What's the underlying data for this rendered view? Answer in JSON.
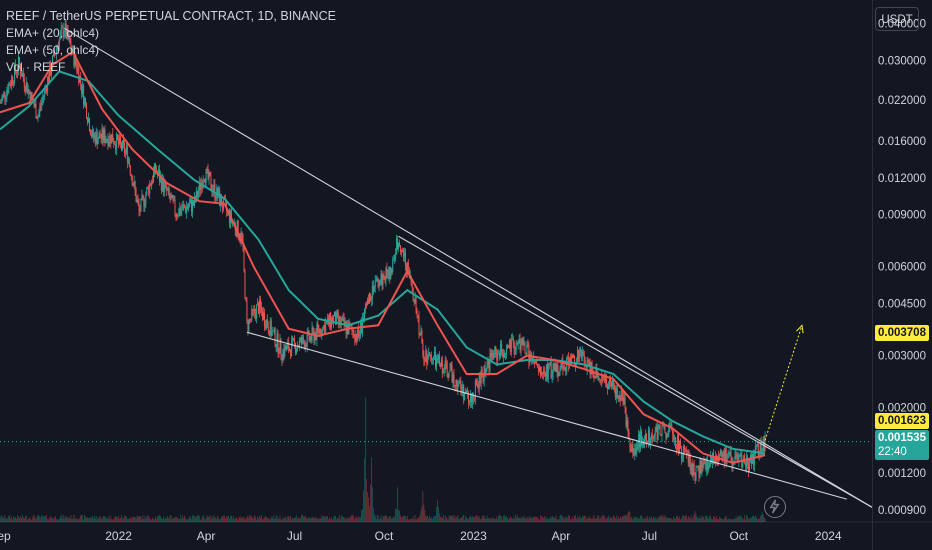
{
  "chart_data": {
    "type": "candlestick",
    "title": "REEF / TetherUS PERPETUAL CONTRACT, 1D, BINANCE",
    "indicators": [
      "EMA+ (20, ohlc4)",
      "EMA+ (50, ohlc4)",
      "Vol · REEF"
    ],
    "currency": "USDT",
    "y_scale": "log",
    "ylim": [
      0.00082,
      0.048
    ],
    "y_ticks": [
      0.04,
      0.03,
      0.022,
      0.016,
      0.012,
      0.009,
      0.006,
      0.0045,
      0.003,
      0.002,
      0.0012,
      0.0009
    ],
    "y_tick_labels": [
      "0.040000",
      "0.030000",
      "0.022000",
      "0.016000",
      "0.012000",
      "0.009000",
      "0.006000",
      "0.004500",
      "0.003000",
      "0.002000",
      "0.001200",
      "0.000900"
    ],
    "x_range": [
      "2021-09-01",
      "2024-02-15"
    ],
    "x_ticks": [
      {
        "label": "Sep",
        "date": "2021-09-01"
      },
      {
        "label": "2022",
        "date": "2022-01-01"
      },
      {
        "label": "Apr",
        "date": "2022-04-01"
      },
      {
        "label": "Jul",
        "date": "2022-07-01"
      },
      {
        "label": "Oct",
        "date": "2022-10-01"
      },
      {
        "label": "2023",
        "date": "2023-01-01"
      },
      {
        "label": "Apr",
        "date": "2023-04-01"
      },
      {
        "label": "Jul",
        "date": "2023-07-01"
      },
      {
        "label": "Oct",
        "date": "2023-10-01"
      },
      {
        "label": "2024",
        "date": "2024-01-01"
      }
    ],
    "price_path": [
      {
        "date": "2021-09-01",
        "price": 0.0215
      },
      {
        "date": "2021-09-20",
        "price": 0.029
      },
      {
        "date": "2021-10-10",
        "price": 0.0195
      },
      {
        "date": "2021-10-30",
        "price": 0.034
      },
      {
        "date": "2021-11-06",
        "price": 0.0385
      },
      {
        "date": "2021-11-20",
        "price": 0.028
      },
      {
        "date": "2021-12-05",
        "price": 0.0165
      },
      {
        "date": "2021-12-25",
        "price": 0.0165
      },
      {
        "date": "2022-01-10",
        "price": 0.0145
      },
      {
        "date": "2022-01-22",
        "price": 0.0092
      },
      {
        "date": "2022-02-08",
        "price": 0.0128
      },
      {
        "date": "2022-03-01",
        "price": 0.0092
      },
      {
        "date": "2022-03-20",
        "price": 0.0098
      },
      {
        "date": "2022-03-30",
        "price": 0.0125
      },
      {
        "date": "2022-04-20",
        "price": 0.0095
      },
      {
        "date": "2022-05-08",
        "price": 0.0075
      },
      {
        "date": "2022-05-13",
        "price": 0.0038
      },
      {
        "date": "2022-05-25",
        "price": 0.0044
      },
      {
        "date": "2022-06-18",
        "price": 0.0031
      },
      {
        "date": "2022-07-15",
        "price": 0.0034
      },
      {
        "date": "2022-08-10",
        "price": 0.004
      },
      {
        "date": "2022-09-05",
        "price": 0.0035
      },
      {
        "date": "2022-09-20",
        "price": 0.0052
      },
      {
        "date": "2022-10-08",
        "price": 0.0058
      },
      {
        "date": "2022-10-16",
        "price": 0.0076
      },
      {
        "date": "2022-11-01",
        "price": 0.0048
      },
      {
        "date": "2022-11-10",
        "price": 0.0031
      },
      {
        "date": "2022-12-10",
        "price": 0.0026
      },
      {
        "date": "2022-12-28",
        "price": 0.0021
      },
      {
        "date": "2023-01-20",
        "price": 0.003
      },
      {
        "date": "2023-02-20",
        "price": 0.0033
      },
      {
        "date": "2023-03-10",
        "price": 0.0026
      },
      {
        "date": "2023-03-25",
        "price": 0.0027
      },
      {
        "date": "2023-04-20",
        "price": 0.003
      },
      {
        "date": "2023-05-15",
        "price": 0.0025
      },
      {
        "date": "2023-06-05",
        "price": 0.0021
      },
      {
        "date": "2023-06-11",
        "price": 0.0014
      },
      {
        "date": "2023-06-25",
        "price": 0.0016
      },
      {
        "date": "2023-07-20",
        "price": 0.0017
      },
      {
        "date": "2023-08-17",
        "price": 0.0012
      },
      {
        "date": "2023-09-10",
        "price": 0.0014
      },
      {
        "date": "2023-10-10",
        "price": 0.00128
      },
      {
        "date": "2023-10-28",
        "price": 0.00153
      }
    ],
    "ema20_path": [
      {
        "date": "2021-09-01",
        "price": 0.02
      },
      {
        "date": "2021-10-01",
        "price": 0.0215
      },
      {
        "date": "2021-10-25",
        "price": 0.029
      },
      {
        "date": "2021-11-15",
        "price": 0.032
      },
      {
        "date": "2021-12-15",
        "price": 0.0205
      },
      {
        "date": "2022-01-15",
        "price": 0.015
      },
      {
        "date": "2022-02-20",
        "price": 0.0115
      },
      {
        "date": "2022-03-25",
        "price": 0.01
      },
      {
        "date": "2022-04-20",
        "price": 0.0098
      },
      {
        "date": "2022-05-20",
        "price": 0.006
      },
      {
        "date": "2022-06-25",
        "price": 0.0037
      },
      {
        "date": "2022-07-25",
        "price": 0.0035
      },
      {
        "date": "2022-08-25",
        "price": 0.0037
      },
      {
        "date": "2022-09-25",
        "price": 0.0038
      },
      {
        "date": "2022-10-25",
        "price": 0.0058
      },
      {
        "date": "2022-11-25",
        "price": 0.0038
      },
      {
        "date": "2022-12-25",
        "price": 0.0026
      },
      {
        "date": "2023-01-25",
        "price": 0.0026
      },
      {
        "date": "2023-02-25",
        "price": 0.003
      },
      {
        "date": "2023-03-25",
        "price": 0.0029
      },
      {
        "date": "2023-04-25",
        "price": 0.0027
      },
      {
        "date": "2023-05-25",
        "price": 0.0025
      },
      {
        "date": "2023-06-25",
        "price": 0.0019
      },
      {
        "date": "2023-07-25",
        "price": 0.0017
      },
      {
        "date": "2023-08-25",
        "price": 0.0014
      },
      {
        "date": "2023-09-25",
        "price": 0.0013
      },
      {
        "date": "2023-10-28",
        "price": 0.00138
      }
    ],
    "ema50_path": [
      {
        "date": "2021-09-01",
        "price": 0.0175
      },
      {
        "date": "2021-10-01",
        "price": 0.021
      },
      {
        "date": "2021-11-01",
        "price": 0.0275
      },
      {
        "date": "2021-12-01",
        "price": 0.0255
      },
      {
        "date": "2022-01-01",
        "price": 0.0195
      },
      {
        "date": "2022-02-10",
        "price": 0.015
      },
      {
        "date": "2022-03-20",
        "price": 0.0118
      },
      {
        "date": "2022-04-20",
        "price": 0.0102
      },
      {
        "date": "2022-05-25",
        "price": 0.0074
      },
      {
        "date": "2022-06-25",
        "price": 0.005
      },
      {
        "date": "2022-07-25",
        "price": 0.004
      },
      {
        "date": "2022-08-25",
        "price": 0.0038
      },
      {
        "date": "2022-09-25",
        "price": 0.0041
      },
      {
        "date": "2022-10-25",
        "price": 0.005
      },
      {
        "date": "2022-11-25",
        "price": 0.0043
      },
      {
        "date": "2022-12-25",
        "price": 0.0032
      },
      {
        "date": "2023-01-25",
        "price": 0.0028
      },
      {
        "date": "2023-02-25",
        "price": 0.0029
      },
      {
        "date": "2023-03-25",
        "price": 0.0029
      },
      {
        "date": "2023-04-25",
        "price": 0.0028
      },
      {
        "date": "2023-05-25",
        "price": 0.0026
      },
      {
        "date": "2023-06-25",
        "price": 0.0021
      },
      {
        "date": "2023-07-25",
        "price": 0.0018
      },
      {
        "date": "2023-08-25",
        "price": 0.0016
      },
      {
        "date": "2023-09-25",
        "price": 0.00145
      },
      {
        "date": "2023-10-28",
        "price": 0.0014
      }
    ],
    "trendlines": [
      {
        "from": {
          "date": "2021-11-06",
          "price": 0.0385
        },
        "to": {
          "date": "2024-02-15",
          "price": 0.00092
        }
      },
      {
        "from": {
          "date": "2022-10-16",
          "price": 0.0076
        },
        "to": {
          "date": "2024-02-15",
          "price": 0.00092
        }
      },
      {
        "from": {
          "date": "2022-05-13",
          "price": 0.0036
        },
        "to": {
          "date": "2024-01-20",
          "price": 0.00098
        }
      }
    ],
    "projection": {
      "from": {
        "date": "2023-10-28",
        "price": 0.00155
      },
      "to": {
        "date": "2023-12-05",
        "price": 0.0038
      }
    },
    "volume_spikes": [
      {
        "date": "2022-09-12",
        "rel": 0.55
      },
      {
        "date": "2022-09-18",
        "rel": 0.28
      },
      {
        "date": "2022-10-15",
        "rel": 0.17
      },
      {
        "date": "2022-11-10",
        "rel": 0.22
      },
      {
        "date": "2022-11-25",
        "rel": 0.12
      },
      {
        "date": "2023-06-10",
        "rel": 0.09
      },
      {
        "date": "2023-08-17",
        "rel": 0.07
      },
      {
        "date": "2023-10-25",
        "rel": 0.06
      }
    ],
    "price_labels": [
      {
        "value": 0.003708,
        "text": "0.003708",
        "bg": "#ffeb3b",
        "fg": "#131722"
      },
      {
        "value": 0.001623,
        "text": "0.001623",
        "bg": "#ffeb3b",
        "fg": "#131722"
      },
      {
        "value": 0.001535,
        "text": "0.001535",
        "bg": "#26a69a",
        "fg": "#ffffff",
        "sub": "22:40"
      }
    ],
    "colors": {
      "background": "#131722",
      "up": "#26a69a",
      "down": "#ef5350",
      "ema20": "#ef5350",
      "ema50": "#26a69a",
      "trendline": "#d1d4dc",
      "projection": "#ffeb3b"
    }
  },
  "legend": {
    "title": "REEF / TetherUS PERPETUAL CONTRACT, 1D, BINANCE",
    "ema20": "EMA+ (20, ohlc4)",
    "ema50": "EMA+ (50, ohlc4)",
    "vol": "Vol · REEF"
  },
  "currency_button": "USDT",
  "current_price": "0.001535",
  "countdown": "22:40",
  "label_high": "0.003708",
  "label_mid": "0.001623"
}
